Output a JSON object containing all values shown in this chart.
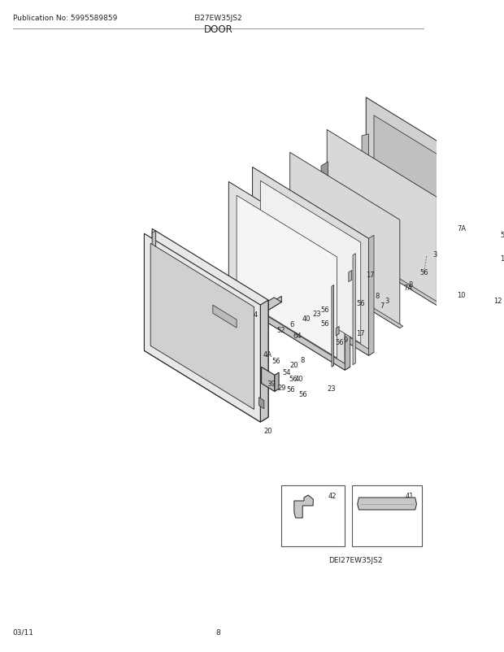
{
  "title": "DOOR",
  "pub_no": "Publication No: 5995589859",
  "model": "EI27EW35JS2",
  "date": "03/11",
  "page": "8",
  "sub_model": "DEI27EW35JS2",
  "bg_color": "#ffffff",
  "text_color": "#000000",
  "line_color": "#222222",
  "gray_fill": "#d8d8d8",
  "light_fill": "#eeeeee",
  "mid_fill": "#cccccc",
  "dark_fill": "#aaaaaa"
}
